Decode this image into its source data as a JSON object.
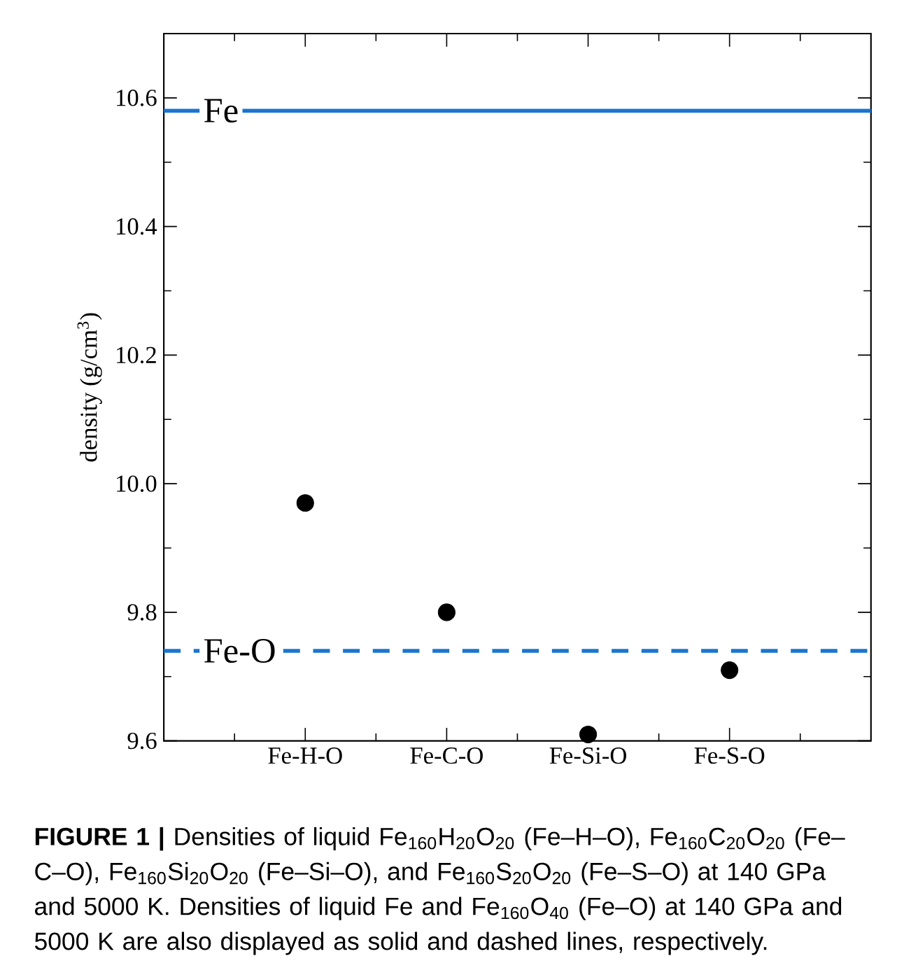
{
  "chart_data": {
    "type": "scatter",
    "ylabel": "density (g/cm$^{3}$)",
    "categories": [
      "Fe-H-O",
      "Fe-C-O",
      "Fe-Si-O",
      "Fe-S-O"
    ],
    "series": [
      {
        "color": "#000000",
        "values": [
          9.97,
          9.8,
          9.61,
          9.71
        ]
      }
    ],
    "marker": "circle",
    "ylim": [
      9.6,
      10.7
    ],
    "yticks": [
      9.6,
      9.8,
      {
        "value": 10,
        "label": "10.0"
      },
      10.2,
      10.4,
      10.6
    ],
    "ref_lines": [
      {
        "axis": "y",
        "value": 10.58,
        "label": "Fe",
        "color": "#1a75cf",
        "line_style": "solid"
      },
      {
        "axis": "y",
        "value": 9.74,
        "label": "Fe-O",
        "color": "#1a75cf",
        "line_style": "dashed"
      }
    ],
    "annotations": [
      "**FIGURE 1 |** Densities of liquid Fe$_{160}$H$_{20}$O$_{20}$ (Fe–H–O), Fe$_{160}$C$_{20}$O$_{20}$ (Fe–C–O), Fe$_{160}$Si$_{20}$O$_{20}$ (Fe–Si–O), and Fe$_{160}$S$_{20}$O$_{20}$ (Fe–S–O) at 140 GPa and 5000 K. Densities of liquid Fe and Fe$_{160}$O$_{40}$ (Fe–O) at 140 GPa and 5000 K are also displayed as solid and dashed lines, respectively."
    ]
  }
}
